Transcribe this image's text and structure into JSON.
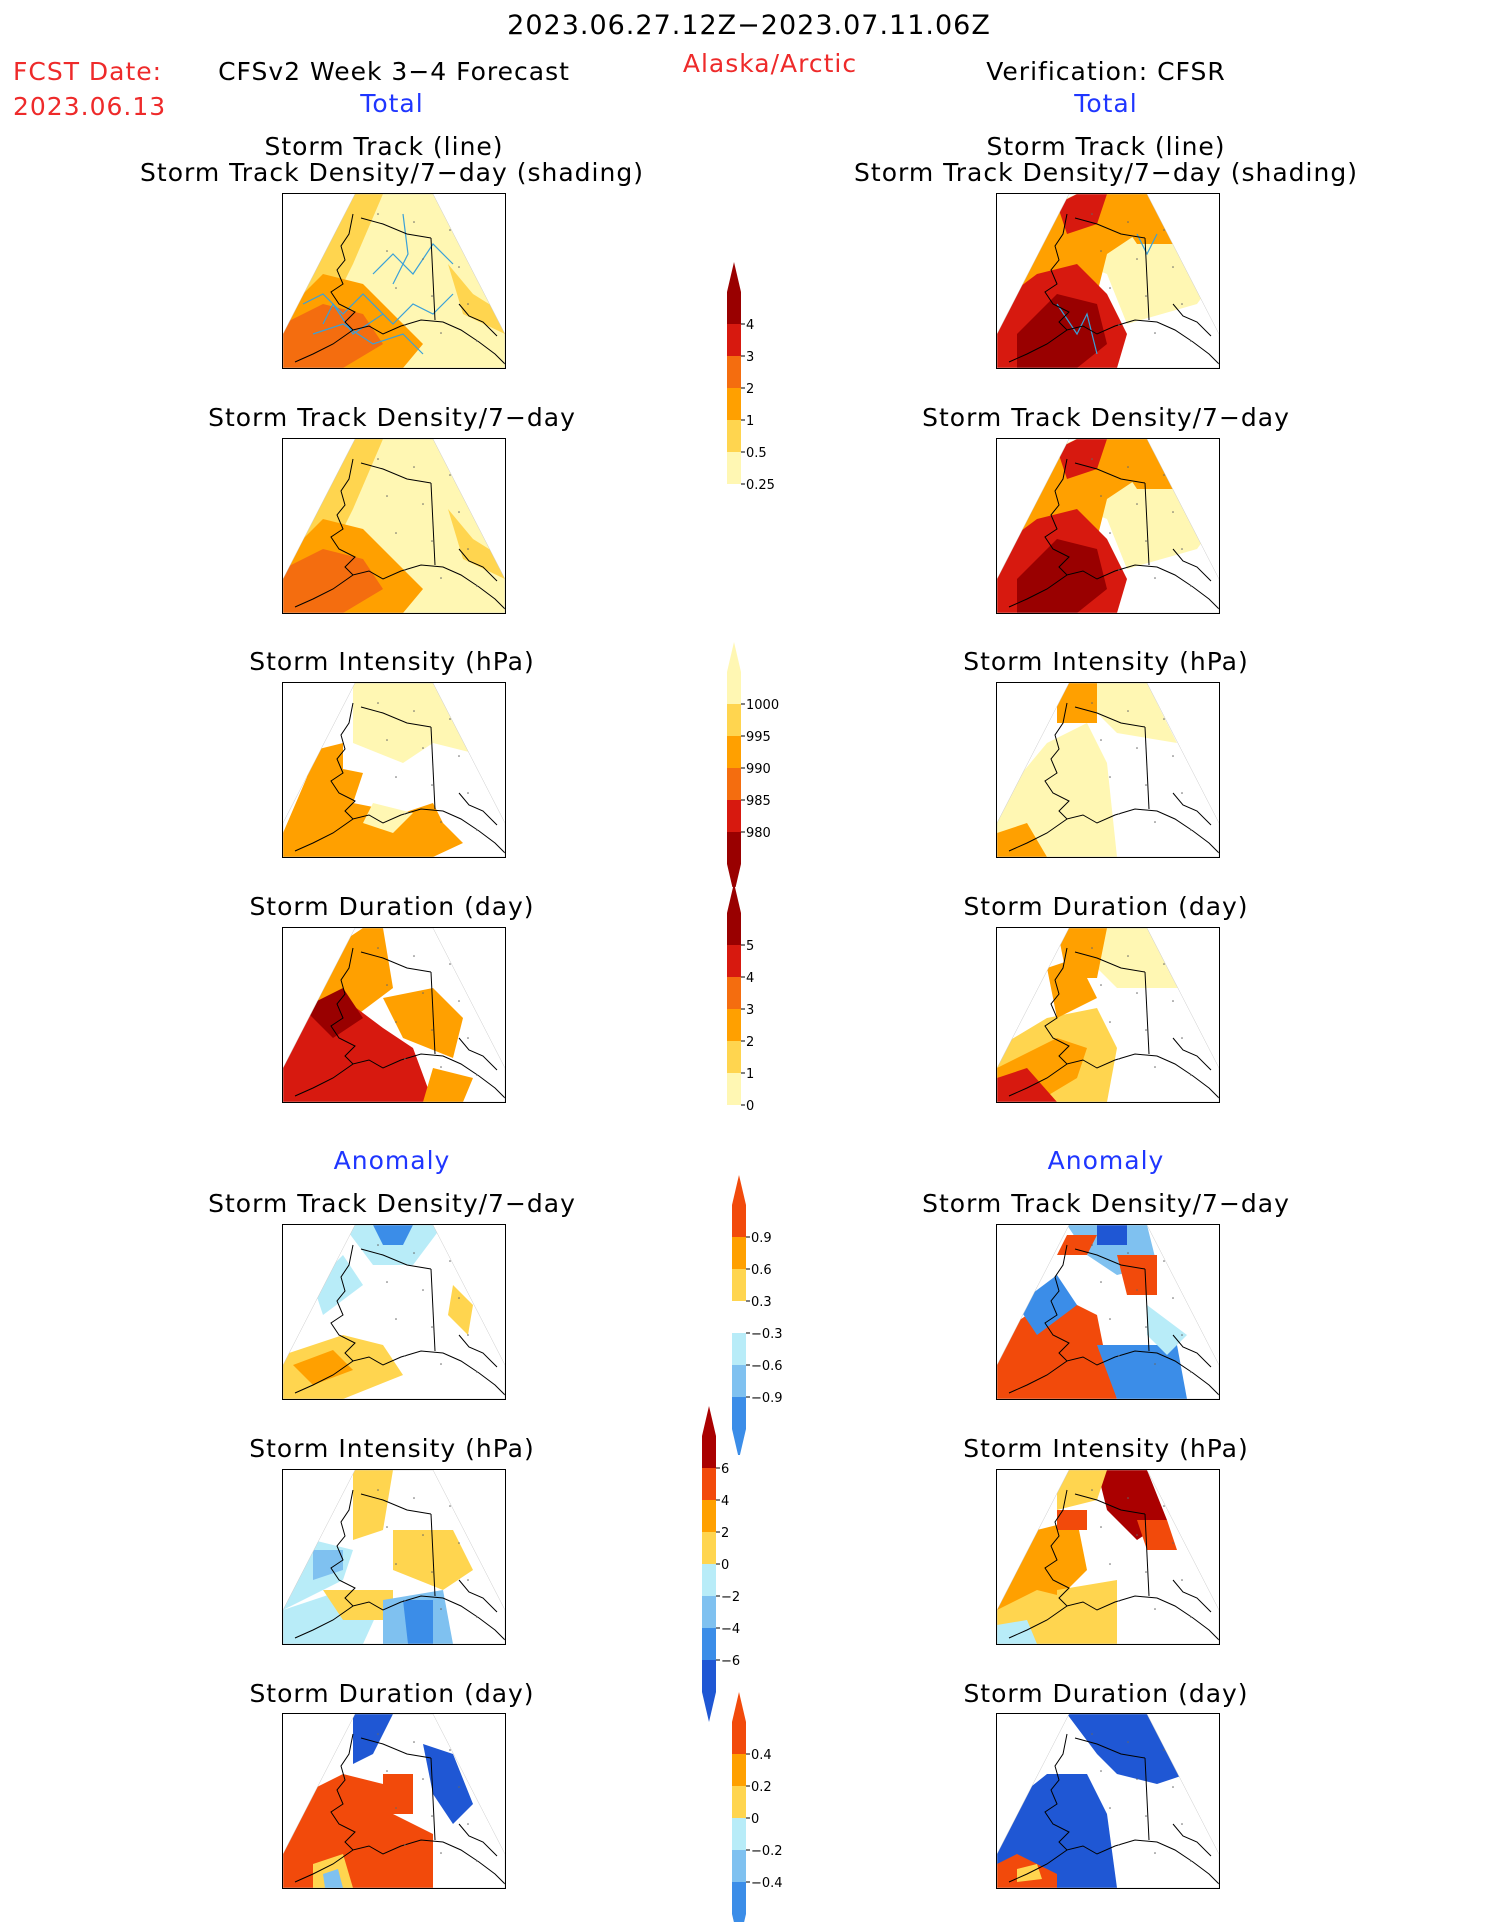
{
  "header": {
    "period": "2023.06.27.12Z−2023.07.11.06Z",
    "fcst_label": "FCST Date:",
    "fcst_date": "2023.06.13",
    "left_title": "CFSv2 Week 3−4 Forecast",
    "region": "Alaska/Arctic",
    "right_title": "Verification: CFSR",
    "total_left": "Total",
    "total_right": "Total",
    "anomaly_left": "Anomaly",
    "anomaly_right": "Anomaly"
  },
  "panel_titles": {
    "track_line": "Storm Track (line)",
    "track_density_shading": "Storm Track Density/7−day (shading)",
    "track_density": "Storm Track Density/7−day",
    "intensity": "Storm Intensity (hPa)",
    "duration": "Storm Duration (day)"
  },
  "colorbars": {
    "density_total": [
      "4",
      "3",
      "2",
      "1",
      "0.5",
      "0.25"
    ],
    "intensity_total": [
      "1000",
      "995",
      "990",
      "985",
      "980"
    ],
    "duration_total": [
      "5",
      "4",
      "3",
      "2",
      "1",
      "0"
    ],
    "density_anom": [
      "0.9",
      "0.6",
      "0.3",
      "−0.3",
      "−0.6",
      "−0.9"
    ],
    "intensity_anom": [
      "6",
      "4",
      "2",
      "0",
      "−2",
      "−4",
      "−6"
    ],
    "duration_anom": [
      "0.4",
      "0.2",
      "0",
      "−0.2",
      "−0.4"
    ]
  },
  "colors": {
    "seq1": "#fff7b3",
    "seq2": "#ffd54f",
    "seq3": "#ffa000",
    "seq4": "#f46d0f",
    "seq5": "#d7190f",
    "seq6": "#990000",
    "div_pos1": "#ffd54f",
    "div_pos2": "#ffa000",
    "div_pos3": "#f24a0b",
    "div_pos4": "#aa0000",
    "div_neg1": "#b8ecf8",
    "div_neg2": "#7fc1f0",
    "div_neg3": "#3b8de8",
    "div_neg4": "#1f57d4",
    "track_line": "#3aa0d8"
  }
}
